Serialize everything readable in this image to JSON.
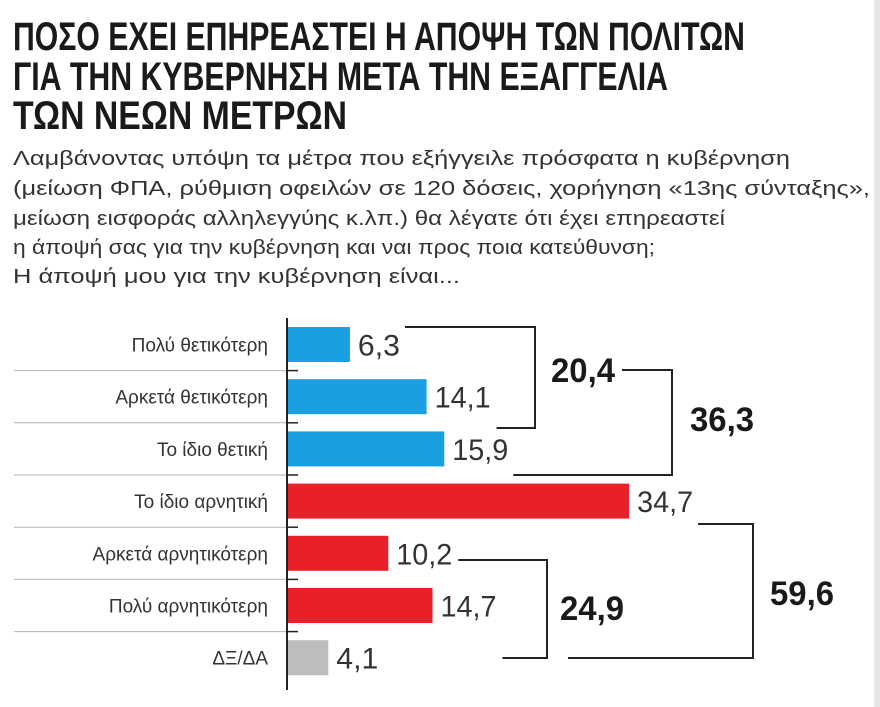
{
  "title_lines": [
    "ΠΟΣΟ ΕΧΕΙ ΕΠΗΡΕΑΣΤΕΙ Η ΑΠΟΨΗ ΤΩΝ ΠΟΛΙΤΩΝ",
    "ΓΙΑ ΤΗΝ ΚΥΒΕΡΝΗΣΗ ΜΕΤΑ ΤΗΝ ΕΞΑΓΓΕΛΙΑ",
    "ΤΩΝ ΝΕΩΝ ΜΕΤΡΩΝ"
  ],
  "question_lines": [
    "Λαμβάνοντας υπόψη τα μέτρα που εξήγγειλε πρόσφατα η κυβέρνηση",
    "(μείωση ΦΠΑ, ρύθμιση οφειλών σε 120 δόσεις, χορήγηση «13ης σύνταξης»,",
    "μείωση εισφοράς αλληλεγγύης κ.λπ.) θα λέγατε ότι έχει επηρεαστεί",
    "η άποψή σας για την κυβέρνηση και ναι προς ποια κατεύθυνση;",
    "Η άποψή μου για την κυβέρνηση είναι..."
  ],
  "chart_data": {
    "type": "bar",
    "orientation": "horizontal",
    "categories": [
      "Πολύ θετικότερη",
      "Αρκετά θετικότερη",
      "Το ίδιο θετική",
      "Το ίδιο αρνητική",
      "Αρκετά αρνητικότερη",
      "Πολύ αρνητικότερη",
      "ΔΞ/ΔΑ"
    ],
    "values": [
      6.3,
      14.1,
      15.9,
      34.7,
      10.2,
      14.7,
      4.1
    ],
    "value_labels": [
      "6,3",
      "14,1",
      "15,9",
      "34,7",
      "10,2",
      "14,7",
      "4,1"
    ],
    "bar_colors": [
      "#1a9fe0",
      "#1a9fe0",
      "#1a9fe0",
      "#e8202a",
      "#e8202a",
      "#e8202a",
      "#bdbdbd"
    ],
    "decimal_separator": ",",
    "subtotals": [
      {
        "label": "20,4",
        "value": 20.4,
        "rows": [
          0,
          1
        ]
      },
      {
        "label": "36,3",
        "value": 36.3,
        "rows": [
          0,
          1,
          2
        ]
      },
      {
        "label": "24,9",
        "value": 24.9,
        "rows": [
          4,
          5
        ]
      },
      {
        "label": "59,6",
        "value": 59.6,
        "rows": [
          3,
          4,
          5
        ]
      }
    ],
    "grid": false,
    "legend": "none"
  }
}
